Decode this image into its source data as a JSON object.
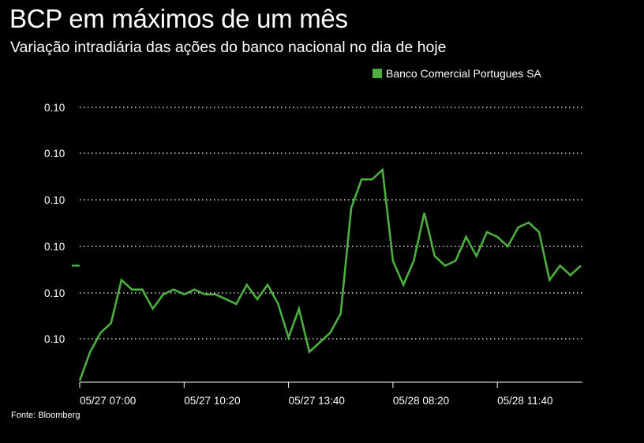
{
  "title": "BCP em máximos de um mês",
  "subtitle": "Variação intradiária das ações do banco nacional no dia de hoje",
  "source": "Fonte: Bloomberg",
  "colors": {
    "background": "#000000",
    "text": "#ffffff",
    "series": "#4caf3f",
    "grid": "#ffffff"
  },
  "chart_data": {
    "type": "line",
    "title": "BCP em máximos de um mês",
    "subtitle": "Variação intradiária das ações do banco nacional no dia de hoje",
    "legend_position": "top-right",
    "grid": true,
    "grid_style": "dotted horizontal",
    "y_tick_labels": [
      "0.10",
      "0.10",
      "0.10",
      "0.10",
      "0.10",
      "0.10"
    ],
    "y_current_marker": "–",
    "x_tick_labels": [
      "05/27 07:00",
      "05/27 10:20",
      "05/27 13:40",
      "05/28 08:20",
      "05/28 11:40"
    ],
    "x_tick_positions": [
      0,
      10,
      20,
      30,
      40
    ],
    "xlim": [
      0,
      48
    ],
    "ylim": [
      0.0958,
      0.1018
    ],
    "series": [
      {
        "name": "Banco Comercial Portugues SA",
        "color": "#4caf3f",
        "x": [
          0,
          1,
          2,
          3,
          4,
          5,
          6,
          7,
          8,
          9,
          10,
          11,
          12,
          13,
          14,
          15,
          16,
          17,
          18,
          19,
          20,
          21,
          22,
          23,
          24,
          25,
          26,
          27,
          28,
          29,
          30,
          31,
          32,
          33,
          34,
          35,
          36,
          37,
          38,
          39,
          40,
          41,
          42,
          43,
          44,
          45,
          46,
          47,
          48
        ],
        "y": [
          0.0958,
          0.0964,
          0.0968,
          0.097,
          0.0979,
          0.0977,
          0.0977,
          0.0973,
          0.0976,
          0.0977,
          0.0976,
          0.0977,
          0.0976,
          0.0976,
          0.0975,
          0.0974,
          0.0978,
          0.0975,
          0.0978,
          0.0974,
          0.0967,
          0.0973,
          0.0964,
          0.0966,
          0.0968,
          0.0972,
          0.0994,
          0.1,
          0.1,
          0.1002,
          0.0983,
          0.0978,
          0.0983,
          0.0993,
          0.0984,
          0.0982,
          0.0983,
          0.0988,
          0.0984,
          0.0989,
          0.0988,
          0.0986,
          0.099,
          0.0991,
          0.0989,
          0.0979,
          0.0982,
          0.098,
          0.0982
        ]
      }
    ]
  }
}
